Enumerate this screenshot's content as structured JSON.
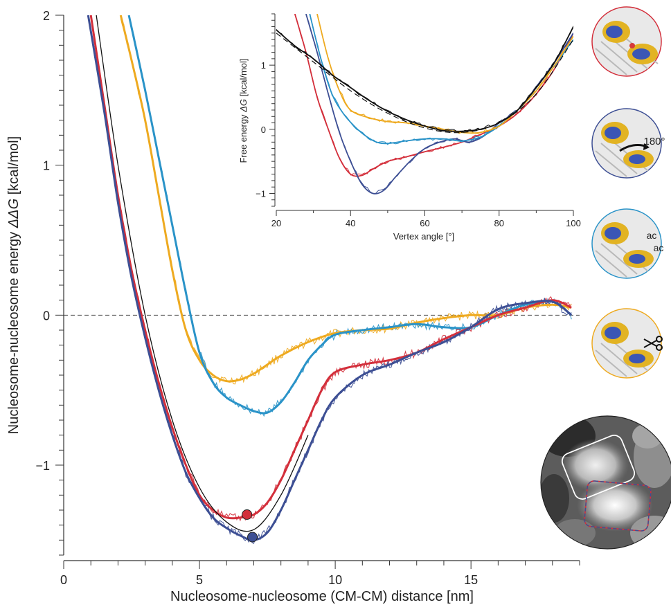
{
  "colors": {
    "red": "#d32f3b",
    "navy": "#3d4f94",
    "sky": "#2a93c8",
    "gold": "#eeaa20",
    "black": "#111111"
  },
  "chart_data": [
    {
      "type": "line",
      "xlabel": "Nucleosome-nucleosome (CM-CM) distance [nm]",
      "ylabel_prefix": "Nucleosome-nucleosome energy ",
      "ylabel_symbol": "ΔΔG",
      "ylabel_unit": " [kcal/mol]",
      "xlim": [
        0,
        19
      ],
      "ylim": [
        -1.6,
        2
      ],
      "xticks": [
        0,
        5,
        10,
        15
      ],
      "yticks": [
        -1,
        0,
        1,
        2
      ],
      "xtick_labels": [
        "0",
        "5",
        "10",
        "15"
      ],
      "ytick_labels": [
        "−1",
        "0",
        "1",
        "2"
      ],
      "reference_line_y": 0,
      "series": [
        {
          "color": "gold",
          "smooth": [
            [
              2.1,
              2.0
            ],
            [
              2.5,
              1.7
            ],
            [
              3,
              1.3
            ],
            [
              3.5,
              0.8
            ],
            [
              4,
              0.3
            ],
            [
              4.5,
              -0.1
            ],
            [
              5,
              -0.3
            ],
            [
              5.5,
              -0.4
            ],
            [
              6,
              -0.44
            ],
            [
              6.5,
              -0.43
            ],
            [
              7,
              -0.39
            ],
            [
              7.5,
              -0.33
            ],
            [
              8,
              -0.27
            ],
            [
              9,
              -0.18
            ],
            [
              10,
              -0.12
            ],
            [
              11,
              -0.1
            ],
            [
              12,
              -0.09
            ],
            [
              13,
              -0.05
            ],
            [
              14,
              -0.02
            ],
            [
              15,
              0
            ],
            [
              16,
              0
            ],
            [
              17,
              0.05
            ],
            [
              18,
              0.07
            ],
            [
              18.7,
              0.05
            ]
          ]
        },
        {
          "color": "sky",
          "smooth": [
            [
              2.4,
              2.0
            ],
            [
              3,
              1.5
            ],
            [
              3.5,
              1.05
            ],
            [
              4,
              0.6
            ],
            [
              4.5,
              0.15
            ],
            [
              5,
              -0.25
            ],
            [
              5.5,
              -0.45
            ],
            [
              6,
              -0.55
            ],
            [
              6.5,
              -0.6
            ],
            [
              7,
              -0.64
            ],
            [
              7.5,
              -0.65
            ],
            [
              8,
              -0.58
            ],
            [
              8.5,
              -0.45
            ],
            [
              9,
              -0.3
            ],
            [
              9.5,
              -0.2
            ],
            [
              10,
              -0.13
            ],
            [
              11,
              -0.1
            ],
            [
              12,
              -0.08
            ],
            [
              13,
              -0.06
            ],
            [
              14,
              -0.08
            ],
            [
              15,
              -0.08
            ],
            [
              16,
              0
            ],
            [
              17,
              0.07
            ],
            [
              18,
              0.09
            ],
            [
              18.7,
              0.0
            ]
          ]
        },
        {
          "color": "red",
          "smooth": [
            [
              1.0,
              2.0
            ],
            [
              1.5,
              1.4
            ],
            [
              2,
              0.8
            ],
            [
              2.5,
              0.3
            ],
            [
              3,
              -0.1
            ],
            [
              3.5,
              -0.45
            ],
            [
              4,
              -0.75
            ],
            [
              4.5,
              -1.0
            ],
            [
              5,
              -1.2
            ],
            [
              5.5,
              -1.3
            ],
            [
              6,
              -1.35
            ],
            [
              6.5,
              -1.35
            ],
            [
              7,
              -1.33
            ],
            [
              7.5,
              -1.25
            ],
            [
              8,
              -1.1
            ],
            [
              8.5,
              -0.9
            ],
            [
              9,
              -0.7
            ],
            [
              9.5,
              -0.5
            ],
            [
              10,
              -0.38
            ],
            [
              11,
              -0.33
            ],
            [
              12,
              -0.3
            ],
            [
              13,
              -0.25
            ],
            [
              14,
              -0.16
            ],
            [
              15,
              -0.08
            ],
            [
              16,
              0.0
            ],
            [
              17,
              0.05
            ],
            [
              18,
              0.1
            ],
            [
              18.7,
              0.05
            ]
          ]
        },
        {
          "color": "navy",
          "smooth": [
            [
              0.9,
              2.0
            ],
            [
              1.5,
              1.35
            ],
            [
              2,
              0.75
            ],
            [
              2.5,
              0.25
            ],
            [
              3,
              -0.15
            ],
            [
              3.5,
              -0.5
            ],
            [
              4,
              -0.8
            ],
            [
              4.5,
              -1.05
            ],
            [
              5,
              -1.22
            ],
            [
              5.5,
              -1.35
            ],
            [
              6,
              -1.42
            ],
            [
              6.5,
              -1.47
            ],
            [
              7,
              -1.5
            ],
            [
              7.5,
              -1.45
            ],
            [
              8,
              -1.3
            ],
            [
              8.5,
              -1.1
            ],
            [
              9,
              -0.9
            ],
            [
              9.5,
              -0.7
            ],
            [
              10,
              -0.55
            ],
            [
              11,
              -0.4
            ],
            [
              12,
              -0.33
            ],
            [
              13,
              -0.25
            ],
            [
              14,
              -0.18
            ],
            [
              15,
              -0.08
            ],
            [
              16,
              0.04
            ],
            [
              17,
              0.08
            ],
            [
              18,
              0.09
            ],
            [
              18.7,
              0.0
            ]
          ]
        }
      ],
      "fit": [
        [
          1.2,
          2.0
        ],
        [
          2,
          1.0
        ],
        [
          3,
          0.0
        ],
        [
          4,
          -0.7
        ],
        [
          5,
          -1.15
        ],
        [
          6,
          -1.38
        ],
        [
          7,
          -1.43
        ],
        [
          8,
          -1.2
        ],
        [
          9,
          -0.8
        ]
      ],
      "markers": [
        {
          "color": "red",
          "x": 6.75,
          "y": -1.33
        },
        {
          "color": "navy",
          "x": 6.95,
          "y": -1.48
        }
      ]
    },
    {
      "type": "line",
      "xlabel": "Vertex angle [°]",
      "ylabel_prefix": "Free energy ",
      "ylabel_symbol": "ΔG",
      "ylabel_unit": " [kcal/mol]",
      "xlim": [
        20,
        100
      ],
      "ylim": [
        -1.2,
        1.8
      ],
      "xticks": [
        20,
        40,
        60,
        80,
        100
      ],
      "yticks": [
        -1,
        0,
        1
      ],
      "xtick_labels": [
        "20",
        "40",
        "60",
        "80",
        "100"
      ],
      "ytick_labels": [
        "−1",
        "0",
        "1"
      ],
      "series": [
        {
          "color": "red",
          "smooth": [
            [
              25,
              1.8
            ],
            [
              28,
              1.2
            ],
            [
              31,
              0.5
            ],
            [
              34,
              0.0
            ],
            [
              37,
              -0.45
            ],
            [
              40,
              -0.7
            ],
            [
              43,
              -0.72
            ],
            [
              46,
              -0.62
            ],
            [
              50,
              -0.5
            ],
            [
              55,
              -0.43
            ],
            [
              60,
              -0.35
            ],
            [
              65,
              -0.28
            ],
            [
              70,
              -0.2
            ],
            [
              75,
              -0.08
            ],
            [
              80,
              0.05
            ],
            [
              85,
              0.25
            ],
            [
              90,
              0.55
            ],
            [
              95,
              0.95
            ],
            [
              100,
              1.5
            ]
          ]
        },
        {
          "color": "navy",
          "smooth": [
            [
              28,
              1.8
            ],
            [
              31,
              1.2
            ],
            [
              34,
              0.55
            ],
            [
              37,
              -0.05
            ],
            [
              40,
              -0.5
            ],
            [
              43,
              -0.85
            ],
            [
              46,
              -1.0
            ],
            [
              49,
              -0.95
            ],
            [
              52,
              -0.75
            ],
            [
              56,
              -0.5
            ],
            [
              60,
              -0.3
            ],
            [
              64,
              -0.2
            ],
            [
              68,
              -0.15
            ],
            [
              72,
              -0.2
            ],
            [
              76,
              -0.1
            ],
            [
              80,
              0.1
            ],
            [
              85,
              0.3
            ],
            [
              90,
              0.65
            ],
            [
              95,
              1.05
            ],
            [
              100,
              1.5
            ]
          ]
        },
        {
          "color": "sky",
          "smooth": [
            [
              29,
              1.8
            ],
            [
              32,
              1.1
            ],
            [
              35,
              0.55
            ],
            [
              38,
              0.25
            ],
            [
              41,
              0.05
            ],
            [
              44,
              -0.1
            ],
            [
              47,
              -0.2
            ],
            [
              50,
              -0.22
            ],
            [
              55,
              -0.18
            ],
            [
              60,
              -0.15
            ],
            [
              65,
              -0.15
            ],
            [
              70,
              -0.18
            ],
            [
              75,
              -0.12
            ],
            [
              80,
              0.05
            ],
            [
              85,
              0.3
            ],
            [
              90,
              0.6
            ],
            [
              95,
              1.0
            ],
            [
              100,
              1.4
            ]
          ]
        },
        {
          "color": "gold",
          "smooth": [
            [
              31,
              1.8
            ],
            [
              34,
              1.1
            ],
            [
              37,
              0.6
            ],
            [
              40,
              0.3
            ],
            [
              45,
              0.18
            ],
            [
              50,
              0.12
            ],
            [
              55,
              0.1
            ],
            [
              60,
              0.05
            ],
            [
              65,
              0.0
            ],
            [
              70,
              -0.05
            ],
            [
              75,
              -0.05
            ],
            [
              80,
              0.05
            ],
            [
              85,
              0.3
            ],
            [
              90,
              0.6
            ],
            [
              95,
              1.0
            ],
            [
              100,
              1.45
            ]
          ]
        },
        {
          "color": "black",
          "smooth": [
            [
              20,
              1.55
            ],
            [
              25,
              1.3
            ],
            [
              30,
              1.1
            ],
            [
              35,
              0.85
            ],
            [
              40,
              0.65
            ],
            [
              45,
              0.45
            ],
            [
              50,
              0.28
            ],
            [
              55,
              0.15
            ],
            [
              60,
              0.05
            ],
            [
              65,
              -0.02
            ],
            [
              70,
              -0.03
            ],
            [
              75,
              0.0
            ],
            [
              80,
              0.1
            ],
            [
              85,
              0.3
            ],
            [
              90,
              0.65
            ],
            [
              95,
              1.05
            ],
            [
              100,
              1.6
            ]
          ]
        }
      ],
      "fit_dashed": [
        [
          20,
          1.5
        ],
        [
          30,
          1.05
        ],
        [
          40,
          0.6
        ],
        [
          50,
          0.25
        ],
        [
          60,
          0.02
        ],
        [
          70,
          -0.05
        ],
        [
          80,
          0.1
        ],
        [
          90,
          0.55
        ],
        [
          100,
          1.4
        ]
      ]
    }
  ],
  "thumbnails": {
    "icon_names": [
      "nucleosome-pair-render",
      "nucleosome-rotated-render",
      "nucleosome-acetylated-render",
      "nucleosome-tail-clipped-render"
    ],
    "ring_colors": [
      "red",
      "navy",
      "sky",
      "gold"
    ],
    "rotation_label": "180°",
    "acetyl_label_1": "ac",
    "acetyl_label_2": "ac",
    "scissors_icon": "scissors-icon"
  },
  "micrograph": {
    "icon": "em-micrograph-image"
  }
}
